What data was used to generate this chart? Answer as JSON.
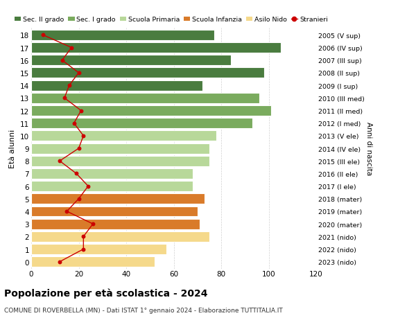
{
  "ages": [
    18,
    17,
    16,
    15,
    14,
    13,
    12,
    11,
    10,
    9,
    8,
    7,
    6,
    5,
    4,
    3,
    2,
    1,
    0
  ],
  "right_labels": [
    "2005 (V sup)",
    "2006 (IV sup)",
    "2007 (III sup)",
    "2008 (II sup)",
    "2009 (I sup)",
    "2010 (III med)",
    "2011 (II med)",
    "2012 (I med)",
    "2013 (V ele)",
    "2014 (IV ele)",
    "2015 (III ele)",
    "2016 (II ele)",
    "2017 (I ele)",
    "2018 (mater)",
    "2019 (mater)",
    "2020 (mater)",
    "2021 (nido)",
    "2022 (nido)",
    "2023 (nido)"
  ],
  "bar_values": [
    77,
    105,
    84,
    98,
    72,
    96,
    101,
    93,
    78,
    75,
    75,
    68,
    68,
    73,
    70,
    71,
    75,
    57,
    52
  ],
  "stranieri_values": [
    5,
    17,
    13,
    20,
    16,
    14,
    21,
    18,
    22,
    20,
    12,
    19,
    24,
    20,
    15,
    26,
    22,
    22,
    12
  ],
  "bar_colors": [
    "#4a7c3f",
    "#4a7c3f",
    "#4a7c3f",
    "#4a7c3f",
    "#4a7c3f",
    "#7aab5e",
    "#7aab5e",
    "#7aab5e",
    "#b8d89a",
    "#b8d89a",
    "#b8d89a",
    "#b8d89a",
    "#b8d89a",
    "#d97b2a",
    "#d97b2a",
    "#d97b2a",
    "#f5d98b",
    "#f5d98b",
    "#f5d98b"
  ],
  "legend_labels": [
    "Sec. II grado",
    "Sec. I grado",
    "Scuola Primaria",
    "Scuola Infanzia",
    "Asilo Nido",
    "Stranieri"
  ],
  "legend_colors": [
    "#4a7c3f",
    "#7aab5e",
    "#b8d89a",
    "#d97b2a",
    "#f5d98b",
    "#cc0000"
  ],
  "stranieri_color": "#cc0000",
  "title": "Popolazione per età scolastica - 2024",
  "subtitle": "COMUNE DI ROVERBELLA (MN) - Dati ISTAT 1° gennaio 2024 - Elaborazione TUTTITALIA.IT",
  "ylabel_left": "Età alunni",
  "ylabel_right": "Anni di nascita",
  "xlim": [
    0,
    120
  ],
  "xticks": [
    0,
    20,
    40,
    60,
    80,
    100,
    120
  ],
  "background_color": "#ffffff",
  "grid_color": "#d0d0d0",
  "bar_height": 0.82
}
